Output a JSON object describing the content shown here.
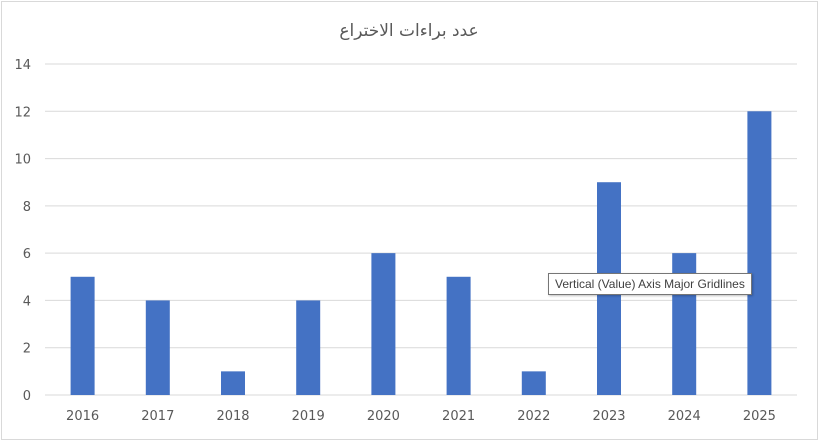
{
  "chart_data": {
    "type": "bar",
    "title": "عدد براءات الاختراع",
    "categories": [
      "2016",
      "2017",
      "2018",
      "2019",
      "2020",
      "2021",
      "2022",
      "2023",
      "2024",
      "2025"
    ],
    "values": [
      5,
      4,
      1,
      4,
      6,
      5,
      1,
      9,
      6,
      12
    ],
    "ylim": [
      0,
      14
    ],
    "yticks": [
      0,
      2,
      4,
      6,
      8,
      10,
      12,
      14
    ],
    "grid": true,
    "legend": "none",
    "bar_color": "#4472c4",
    "gridline_color": "#d9d9d9"
  },
  "tooltip": {
    "text": "Vertical (Value) Axis Major Gridlines"
  }
}
